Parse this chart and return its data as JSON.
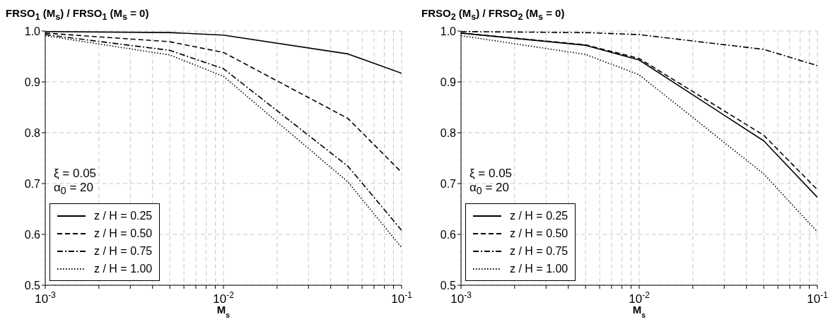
{
  "chart_data": [
    {
      "type": "line",
      "ylabel": "FRSO$_{1}$ (M$_{s}$) / FRSO$_{1}$ (M$_{s}$ = 0)",
      "xlabel": "M$_{s}$",
      "log": "x",
      "xlim": [
        0.001,
        0.1
      ],
      "xticks": [
        {
          "value": 0.001,
          "label": "10$^{-3}$"
        },
        {
          "value": 0.002,
          "label": null
        },
        {
          "value": 0.003,
          "label": null
        },
        {
          "value": 0.004,
          "label": null
        },
        {
          "value": 0.005,
          "label": null
        },
        {
          "value": 0.006,
          "label": null
        },
        {
          "value": 0.007,
          "label": null
        },
        {
          "value": 0.008,
          "label": null
        },
        {
          "value": 0.009,
          "label": null
        },
        {
          "value": 0.01,
          "label": "10$^{-2}$"
        },
        {
          "value": 0.02,
          "label": null
        },
        {
          "value": 0.03,
          "label": null
        },
        {
          "value": 0.04,
          "label": null
        },
        {
          "value": 0.05,
          "label": null
        },
        {
          "value": 0.06,
          "label": null
        },
        {
          "value": 0.07,
          "label": null
        },
        {
          "value": 0.08,
          "label": null
        },
        {
          "value": 0.09,
          "label": null
        },
        {
          "value": 0.1,
          "label": "10$^{-1}$"
        }
      ],
      "ylim": [
        0.5,
        1
      ],
      "yticks": [
        0.5,
        0.6,
        0.7,
        0.8,
        0.9,
        {
          "value": 1,
          "label": "1.0"
        }
      ],
      "grid": true,
      "legend": "bottom left",
      "annotations": [
        "ξ = 0.05",
        "α$_{0}$ = 20"
      ],
      "x": [
        0.001,
        0.005,
        0.01,
        0.05,
        0.1
      ],
      "series": [
        {
          "name": "z / H = 0.25",
          "color": "#000000",
          "line_style": "solid",
          "values": [
            0.999,
            0.997,
            0.992,
            0.955,
            0.917
          ]
        },
        {
          "name": "z / H = 0.50",
          "color": "#000000",
          "line_style": "dashed",
          "values": [
            0.996,
            0.979,
            0.958,
            0.828,
            0.722
          ]
        },
        {
          "name": "z / H = 0.75",
          "color": "#000000",
          "line_style": "dashdot",
          "values": [
            0.993,
            0.962,
            0.926,
            0.734,
            0.608
          ]
        },
        {
          "name": "z / H = 1.00",
          "color": "#000000",
          "line_style": "dotted",
          "values": [
            0.991,
            0.953,
            0.911,
            0.703,
            0.574
          ]
        }
      ]
    },
    {
      "type": "line",
      "ylabel": "FRSO$_{2}$ (M$_{s}$) / FRSO$_{2}$ (M$_{s}$ = 0)",
      "xlabel": "M$_{s}$",
      "log": "x",
      "xlim": [
        0.001,
        0.1
      ],
      "xticks": [
        {
          "value": 0.001,
          "label": "10$^{-3}$"
        },
        {
          "value": 0.002,
          "label": null
        },
        {
          "value": 0.003,
          "label": null
        },
        {
          "value": 0.004,
          "label": null
        },
        {
          "value": 0.005,
          "label": null
        },
        {
          "value": 0.006,
          "label": null
        },
        {
          "value": 0.007,
          "label": null
        },
        {
          "value": 0.008,
          "label": null
        },
        {
          "value": 0.009,
          "label": null
        },
        {
          "value": 0.01,
          "label": "10$^{-2}$"
        },
        {
          "value": 0.02,
          "label": null
        },
        {
          "value": 0.03,
          "label": null
        },
        {
          "value": 0.04,
          "label": null
        },
        {
          "value": 0.05,
          "label": null
        },
        {
          "value": 0.06,
          "label": null
        },
        {
          "value": 0.07,
          "label": null
        },
        {
          "value": 0.08,
          "label": null
        },
        {
          "value": 0.09,
          "label": null
        },
        {
          "value": 0.1,
          "label": "10$^{-1}$"
        }
      ],
      "ylim": [
        0.5,
        1
      ],
      "yticks": [
        0.5,
        0.6,
        0.7,
        0.8,
        0.9,
        {
          "value": 1,
          "label": "1.0"
        }
      ],
      "grid": true,
      "legend": "bottom left",
      "annotations": [
        "ξ = 0.05",
        "α$_{0}$ = 20"
      ],
      "x": [
        0.001,
        0.005,
        0.01,
        0.05,
        0.1
      ],
      "series": [
        {
          "name": "z / H = 0.25",
          "color": "#000000",
          "line_style": "solid",
          "values": [
            0.996,
            0.972,
            0.943,
            0.784,
            0.673
          ]
        },
        {
          "name": "z / H = 0.50",
          "color": "#000000",
          "line_style": "dashed",
          "values": [
            0.996,
            0.973,
            0.946,
            0.795,
            0.688
          ]
        },
        {
          "name": "z / H = 0.75",
          "color": "#000000",
          "line_style": "dashdot",
          "values": [
            0.999,
            0.997,
            0.993,
            0.964,
            0.932
          ]
        },
        {
          "name": "z / H = 1.00",
          "color": "#000000",
          "line_style": "dotted",
          "values": [
            0.991,
            0.954,
            0.914,
            0.719,
            0.605
          ]
        }
      ]
    }
  ]
}
